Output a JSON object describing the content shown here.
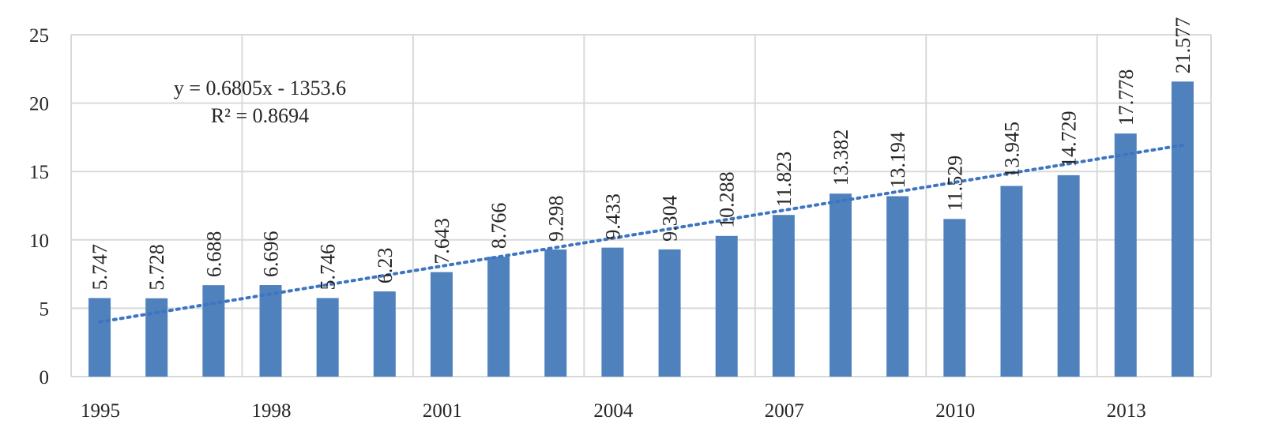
{
  "chart_data": {
    "type": "bar",
    "categories": [
      "1995",
      "1996",
      "1997",
      "1998",
      "1999",
      "2000",
      "2001",
      "2002",
      "2003",
      "2004",
      "2005",
      "2006",
      "2007",
      "2008",
      "2009",
      "2010",
      "2011",
      "2012",
      "2013",
      "2014"
    ],
    "values": [
      5.747,
      5.728,
      6.688,
      6.696,
      5.746,
      6.23,
      7.643,
      8.766,
      9.298,
      9.433,
      9.304,
      10.288,
      11.823,
      13.382,
      13.194,
      11.529,
      13.945,
      14.729,
      17.778,
      21.577
    ],
    "data_labels": [
      "5.747",
      "5.728",
      "6.688",
      "6.696",
      "5.746",
      "6.23",
      "7.643",
      "8.766",
      "9.298",
      "9.433",
      "9.304",
      "10.288",
      "11.823",
      "13.382",
      "13.194",
      "11.529",
      "13.945",
      "14.729",
      "17.778",
      "21.577"
    ],
    "x_tick_labels": [
      "1995",
      "1998",
      "2001",
      "2004",
      "2007",
      "2010",
      "2013"
    ],
    "y_tick_labels": [
      "0",
      "5",
      "10",
      "15",
      "20",
      "25"
    ],
    "ylim": [
      0,
      25
    ],
    "y_ticks": [
      0,
      5,
      10,
      15,
      20,
      25
    ],
    "grid": true,
    "title": "",
    "xlabel": "",
    "ylabel": "",
    "colors": {
      "bar": "#4f81bd",
      "trendline": "#3e75c0",
      "grid": "#d9d9d9"
    },
    "trendline": {
      "type": "linear",
      "slope": 0.6805,
      "intercept": -1353.6,
      "equation": "y = 0.6805x - 1353.6",
      "r_squared": "R² = 0.8694"
    }
  }
}
